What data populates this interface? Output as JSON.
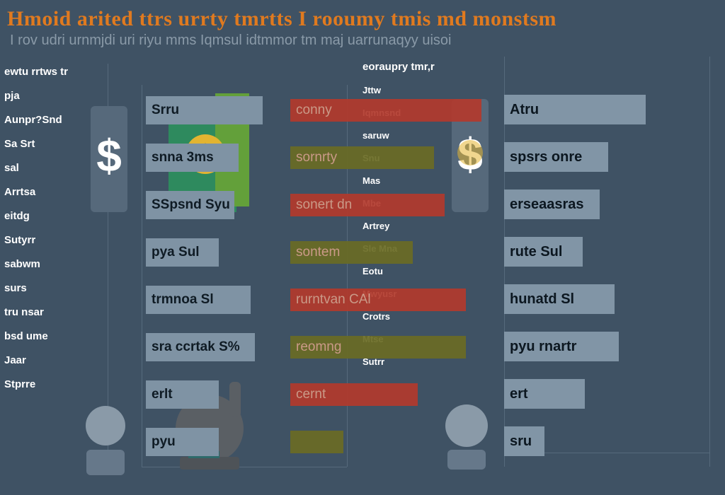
{
  "header": {
    "title": "Hmoid arited ttrs urrty tmrtts  I rooumy tmis md monstsm",
    "subtitle": "I rov udri urnmjdi uri riyu mms  Iqmsul idtmmor tm maj uarrunaqyy uisoi"
  },
  "left_list": {
    "heading": "ewtu rrtws tr",
    "items": [
      {
        "label": "pja"
      },
      {
        "label": "Aunpr?Snd"
      },
      {
        "label": "Sa Srt"
      },
      {
        "label": "sal"
      },
      {
        "label": "Arrtsa"
      },
      {
        "label": "eitdg"
      },
      {
        "label": "Sutyrr"
      },
      {
        "label": "sabwm"
      },
      {
        "label": "surs"
      },
      {
        "label": "tru nsar"
      },
      {
        "label": "bsd ume"
      },
      {
        "label": "Jaar"
      },
      {
        "label": "Stprre"
      }
    ]
  },
  "middle": {
    "heading": "eoraupry tmr,r",
    "labels": [
      "Jttw",
      "Iqmnsnd",
      "saruw",
      "Snu",
      "Mas",
      "Mbe",
      "Artrey",
      "Sle Mna",
      "Eotu",
      "Mwyusr",
      "Crotrs",
      "Mtse",
      "Sutrr"
    ]
  },
  "chart_data": {
    "type": "bar",
    "title": "Hmoid arited ttrs urrty tmrtts  I rooumy tmis md monstsm",
    "categories": [
      "Srru",
      "snna 3ms",
      "SSpsnd Syu",
      "pya Sul",
      "trmnoa Sl",
      "sra ccrtak S%",
      "erlt",
      "pyu"
    ],
    "series": [
      {
        "name": "",
        "values": [
          58,
          46,
          44,
          36,
          52,
          54,
          36,
          36
        ]
      },
      {
        "name": "",
        "values": [
          36,
          27,
          29,
          23,
          33,
          33,
          24,
          10
        ]
      },
      {
        "name": "",
        "values": [
          73,
          49,
          45,
          37,
          52,
          54,
          38,
          19
        ]
      }
    ],
    "mid_bar_text": [
      "conny",
      "sornrty",
      "sonert dn",
      "sontem",
      "rurntvan CAl",
      "reomng",
      "cernt",
      ""
    ],
    "right_categories": [
      "Atru",
      "spsrs onre",
      "erseaasras",
      "rute Sul",
      "hunatd Sl",
      "pyu rnartr",
      "ert",
      "sru"
    ],
    "ylim": [
      0,
      100
    ],
    "colors": {
      "label_bar": "#7f93a4",
      "accent_red": "#b23a2c",
      "accent_olive": "#6a6b24",
      "title": "#e07a1f"
    }
  }
}
